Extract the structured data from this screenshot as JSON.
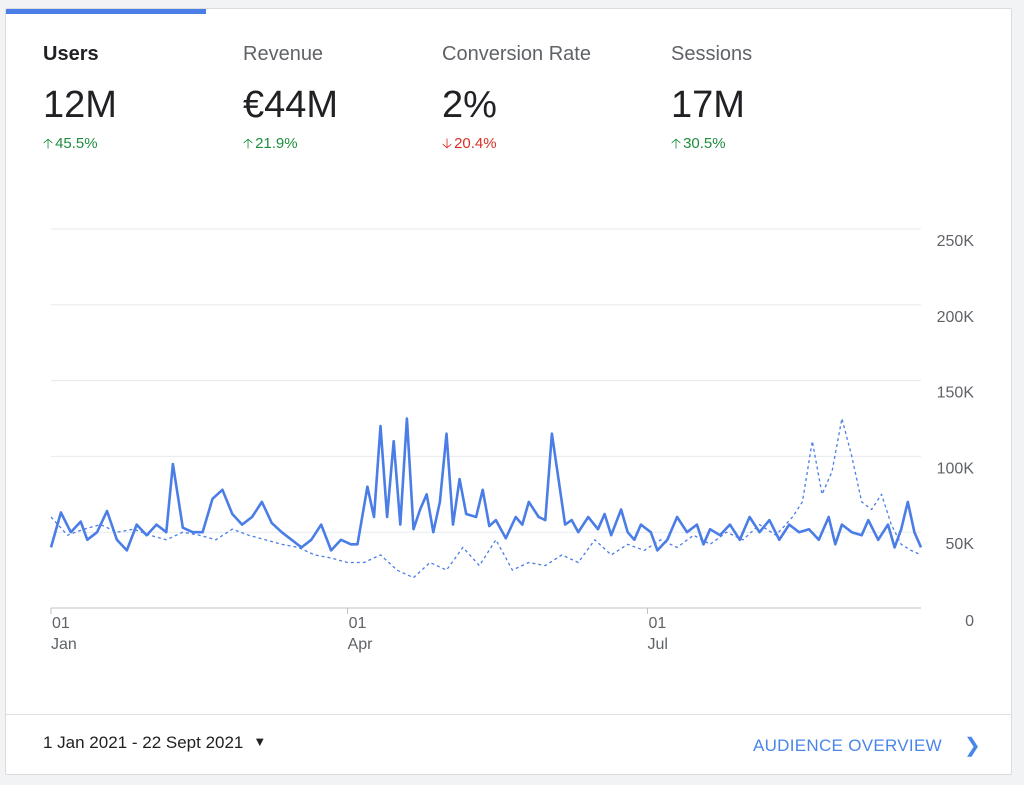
{
  "metrics": [
    {
      "name": "Users",
      "value": "12M",
      "change": "45.5%",
      "direction": "up",
      "active": true
    },
    {
      "name": "Revenue",
      "value": "€44M",
      "change": "21.9%",
      "direction": "up",
      "active": false
    },
    {
      "name": "Conversion Rate",
      "value": "2%",
      "change": "20.4%",
      "direction": "down",
      "active": false
    },
    {
      "name": "Sessions",
      "value": "17M",
      "change": "30.5%",
      "direction": "up",
      "active": false
    }
  ],
  "footer": {
    "date_range": "1 Jan 2021 - 22 Sept 2021",
    "date_range_icon": "caret-down-icon",
    "link_label": "AUDIENCE OVERVIEW",
    "link_icon": "chevron-right-icon"
  },
  "colors": {
    "accent": "#4a7de6",
    "positive": "#1e8e3e",
    "negative": "#d93025",
    "link": "#4a86e8"
  },
  "chart_data": {
    "type": "line",
    "y_ticks": [
      "250K",
      "200K",
      "150K",
      "100K",
      "50K",
      "0"
    ],
    "ylim": [
      0,
      250000
    ],
    "x_ticks": [
      {
        "day": 1,
        "label": [
          "01",
          "Jan"
        ]
      },
      {
        "day": 91,
        "label": [
          "01",
          "Apr"
        ]
      },
      {
        "day": 182,
        "label": [
          "01",
          "Jul"
        ]
      }
    ],
    "x_range_days": [
      1,
      265
    ],
    "series": [
      {
        "style": "solid",
        "points": [
          [
            1,
            40000
          ],
          [
            4,
            63000
          ],
          [
            7,
            50000
          ],
          [
            10,
            57000
          ],
          [
            12,
            45000
          ],
          [
            15,
            50000
          ],
          [
            18,
            64000
          ],
          [
            21,
            45000
          ],
          [
            24,
            38000
          ],
          [
            27,
            55000
          ],
          [
            30,
            48000
          ],
          [
            33,
            55000
          ],
          [
            36,
            50000
          ],
          [
            38,
            95000
          ],
          [
            41,
            53000
          ],
          [
            44,
            50000
          ],
          [
            47,
            50000
          ],
          [
            50,
            72000
          ],
          [
            53,
            78000
          ],
          [
            56,
            62000
          ],
          [
            59,
            55000
          ],
          [
            62,
            60000
          ],
          [
            65,
            70000
          ],
          [
            68,
            56000
          ],
          [
            71,
            50000
          ],
          [
            74,
            45000
          ],
          [
            77,
            40000
          ],
          [
            80,
            45000
          ],
          [
            83,
            55000
          ],
          [
            86,
            38000
          ],
          [
            89,
            45000
          ],
          [
            92,
            42000
          ],
          [
            94,
            42000
          ],
          [
            97,
            80000
          ],
          [
            99,
            60000
          ],
          [
            101,
            120000
          ],
          [
            103,
            60000
          ],
          [
            105,
            110000
          ],
          [
            107,
            55000
          ],
          [
            109,
            125000
          ],
          [
            111,
            52000
          ],
          [
            113,
            65000
          ],
          [
            115,
            75000
          ],
          [
            117,
            50000
          ],
          [
            119,
            70000
          ],
          [
            121,
            115000
          ],
          [
            123,
            55000
          ],
          [
            125,
            85000
          ],
          [
            127,
            62000
          ],
          [
            130,
            60000
          ],
          [
            132,
            78000
          ],
          [
            134,
            54000
          ],
          [
            136,
            58000
          ],
          [
            139,
            46000
          ],
          [
            142,
            60000
          ],
          [
            144,
            55000
          ],
          [
            146,
            70000
          ],
          [
            149,
            60000
          ],
          [
            151,
            58000
          ],
          [
            153,
            115000
          ],
          [
            155,
            85000
          ],
          [
            157,
            55000
          ],
          [
            159,
            58000
          ],
          [
            161,
            50000
          ],
          [
            164,
            60000
          ],
          [
            167,
            52000
          ],
          [
            169,
            62000
          ],
          [
            171,
            48000
          ],
          [
            174,
            65000
          ],
          [
            176,
            50000
          ],
          [
            178,
            45000
          ],
          [
            180,
            55000
          ],
          [
            183,
            50000
          ],
          [
            185,
            38000
          ],
          [
            188,
            45000
          ],
          [
            191,
            60000
          ],
          [
            194,
            50000
          ],
          [
            197,
            55000
          ],
          [
            199,
            42000
          ],
          [
            201,
            52000
          ],
          [
            204,
            48000
          ],
          [
            207,
            55000
          ],
          [
            210,
            45000
          ],
          [
            213,
            60000
          ],
          [
            216,
            50000
          ],
          [
            219,
            58000
          ],
          [
            222,
            45000
          ],
          [
            225,
            55000
          ],
          [
            228,
            50000
          ],
          [
            231,
            52000
          ],
          [
            234,
            45000
          ],
          [
            237,
            60000
          ],
          [
            239,
            42000
          ],
          [
            241,
            55000
          ],
          [
            244,
            50000
          ],
          [
            247,
            48000
          ],
          [
            249,
            58000
          ],
          [
            252,
            45000
          ],
          [
            255,
            55000
          ],
          [
            257,
            40000
          ],
          [
            259,
            52000
          ],
          [
            261,
            70000
          ],
          [
            263,
            50000
          ],
          [
            265,
            40000
          ]
        ]
      },
      {
        "style": "dashed",
        "points": [
          [
            1,
            60000
          ],
          [
            6,
            48000
          ],
          [
            11,
            52000
          ],
          [
            16,
            55000
          ],
          [
            21,
            50000
          ],
          [
            26,
            52000
          ],
          [
            31,
            48000
          ],
          [
            36,
            45000
          ],
          [
            41,
            50000
          ],
          [
            46,
            48000
          ],
          [
            51,
            45000
          ],
          [
            56,
            52000
          ],
          [
            61,
            48000
          ],
          [
            66,
            45000
          ],
          [
            71,
            42000
          ],
          [
            76,
            40000
          ],
          [
            81,
            35000
          ],
          [
            86,
            33000
          ],
          [
            91,
            30000
          ],
          [
            96,
            30000
          ],
          [
            101,
            35000
          ],
          [
            106,
            25000
          ],
          [
            111,
            20000
          ],
          [
            116,
            30000
          ],
          [
            121,
            25000
          ],
          [
            126,
            40000
          ],
          [
            131,
            28000
          ],
          [
            136,
            45000
          ],
          [
            141,
            25000
          ],
          [
            146,
            30000
          ],
          [
            151,
            28000
          ],
          [
            156,
            35000
          ],
          [
            161,
            30000
          ],
          [
            166,
            45000
          ],
          [
            171,
            35000
          ],
          [
            176,
            42000
          ],
          [
            181,
            38000
          ],
          [
            186,
            45000
          ],
          [
            191,
            40000
          ],
          [
            196,
            48000
          ],
          [
            201,
            42000
          ],
          [
            206,
            50000
          ],
          [
            211,
            45000
          ],
          [
            216,
            55000
          ],
          [
            221,
            48000
          ],
          [
            226,
            60000
          ],
          [
            229,
            70000
          ],
          [
            232,
            110000
          ],
          [
            235,
            75000
          ],
          [
            238,
            90000
          ],
          [
            241,
            125000
          ],
          [
            244,
            100000
          ],
          [
            247,
            70000
          ],
          [
            250,
            65000
          ],
          [
            253,
            75000
          ],
          [
            256,
            55000
          ],
          [
            259,
            42000
          ],
          [
            262,
            38000
          ],
          [
            265,
            35000
          ]
        ]
      }
    ]
  }
}
